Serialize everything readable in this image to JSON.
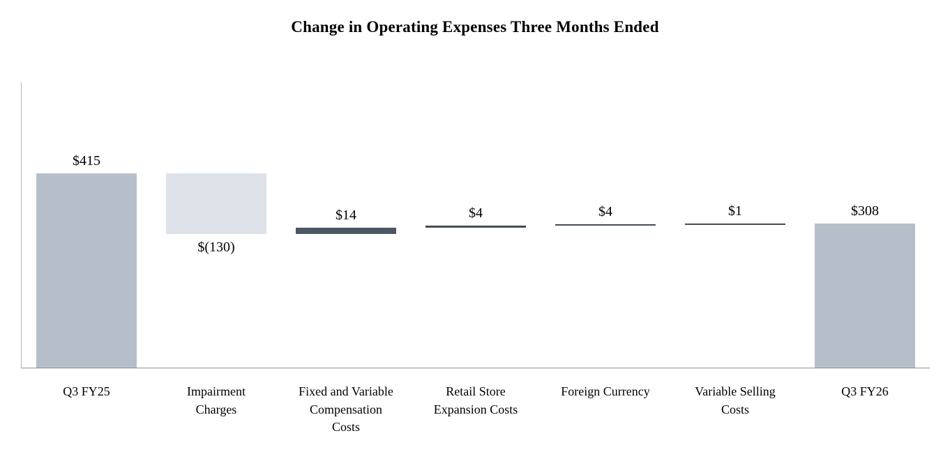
{
  "chart_data": {
    "type": "bar",
    "subtype": "waterfall",
    "title": "Change in Operating Expenses Three Months Ended",
    "xlabel": "",
    "ylabel": "",
    "ylim": [
      0,
      610
    ],
    "grid": false,
    "legend": false,
    "axis_color": "#b5b5b5",
    "categories": [
      "Q3 FY25",
      "Impairment\nCharges",
      "Fixed and Variable\nCompensation\nCosts",
      "Retail Store\nExpansion Costs",
      "Foreign Currency",
      "Variable Selling\nCosts",
      "Q3 FY26"
    ],
    "bars": [
      {
        "category": "Q3 FY25",
        "label": "$415",
        "start": 0,
        "end": 415,
        "value": 415,
        "color": "#b6bfc9",
        "label_pos": "above"
      },
      {
        "category": "Impairment Charges",
        "label": "$(130)",
        "start": 415,
        "end": 285,
        "value": -130,
        "color": "#dde2e8",
        "label_pos": "below"
      },
      {
        "category": "Fixed and Variable Compensation Costs",
        "label": "$14",
        "start": 285,
        "end": 299,
        "value": 14,
        "color": "#4b5863",
        "label_pos": "above"
      },
      {
        "category": "Retail Store Expansion Costs",
        "label": "$4",
        "start": 299,
        "end": 303,
        "value": 4,
        "color": "#434c54",
        "label_pos": "above"
      },
      {
        "category": "Foreign Currency",
        "label": "$4",
        "start": 303,
        "end": 307,
        "value": 4,
        "color": "#434c54",
        "label_pos": "above"
      },
      {
        "category": "Variable Selling Costs",
        "label": "$1",
        "start": 307,
        "end": 308,
        "value": 1,
        "color": "#434c54",
        "label_pos": "above"
      },
      {
        "category": "Q3 FY26",
        "label": "$308",
        "start": 0,
        "end": 308,
        "value": 308,
        "color": "#b6bfc9",
        "label_pos": "above"
      }
    ]
  }
}
